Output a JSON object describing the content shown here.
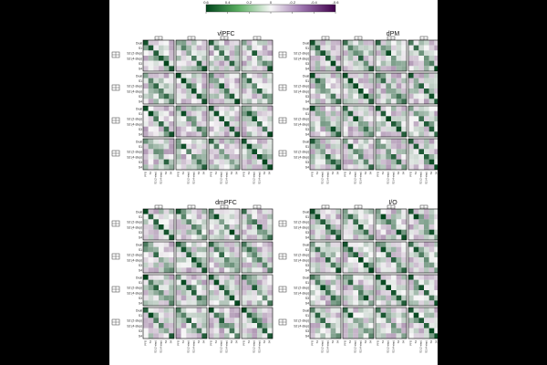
{
  "colors": {
    "green_strong": "#00441b",
    "neutral": "#f7f7f7",
    "purple_strong": "#40004b",
    "block_border": "#000000",
    "chance_marker": "#f5c518"
  },
  "colorbar": {
    "ticks": [
      "0.6",
      "0.4",
      "0.2",
      "0",
      "-0.2",
      "-0.4",
      "-0.6"
    ],
    "range": [
      0.6,
      -0.6
    ]
  },
  "chart_data": {
    "type": "heatmap",
    "panels": [
      {
        "title": "vlPFC"
      },
      {
        "title": "dPM"
      },
      {
        "title": "dmPFC"
      },
      {
        "title": "I/O"
      }
    ],
    "row_labels": [
      "Dual",
      "S1",
      "S2 (2-step)",
      "S2 (4-step)",
      "S3",
      "S4"
    ],
    "col_labels": [
      "PFO",
      "S1",
      "S2 (2-step)",
      "S2 (4-step)",
      "S3",
      "S4"
    ],
    "grid": "4x4 blocks of 6x6 cells",
    "value_range": [
      -0.6,
      0.6
    ]
  }
}
